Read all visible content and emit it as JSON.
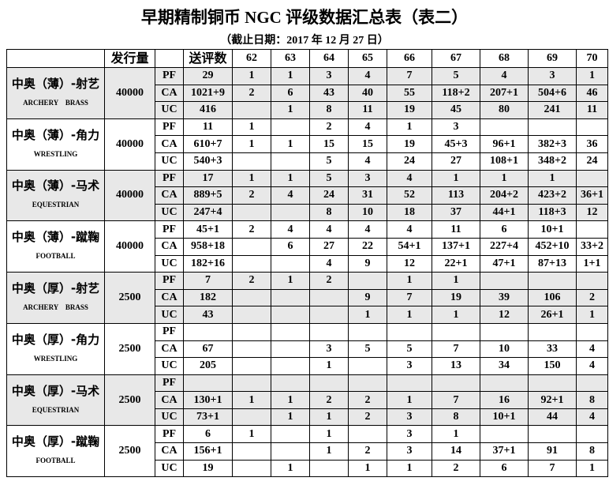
{
  "title": "早期精制铜币 NGC 评级数据汇总表（表二）",
  "subtitle": "（截止日期：2017 年 12 月 27 日）",
  "headers": {
    "name": "",
    "issue": "发行量",
    "grade": "",
    "total": "送评数",
    "grades": [
      "62",
      "63",
      "64",
      "65",
      "66",
      "67",
      "68",
      "69",
      "70"
    ]
  },
  "shade_color": "#e8e8e8",
  "groups": [
    {
      "cn": "中奥（薄）-射艺",
      "en": "ARCHERY　BRASS",
      "issue": "40000",
      "rows": [
        {
          "g": "PF",
          "total": "29",
          "v": [
            "1",
            "1",
            "3",
            "4",
            "7",
            "5",
            "4",
            "3",
            "1"
          ]
        },
        {
          "g": "CA",
          "total": "1021+9",
          "v": [
            "2",
            "6",
            "43",
            "40",
            "55",
            "118+2",
            "207+1",
            "504+6",
            "46"
          ]
        },
        {
          "g": "UC",
          "total": "416",
          "v": [
            "",
            "1",
            "8",
            "11",
            "19",
            "45",
            "80",
            "241",
            "11"
          ]
        }
      ]
    },
    {
      "cn": "中奥（薄）-角力",
      "en": "WRESTLING",
      "issue": "40000",
      "rows": [
        {
          "g": "PF",
          "total": "11",
          "v": [
            "1",
            "",
            "2",
            "4",
            "1",
            "3",
            "",
            "",
            ""
          ]
        },
        {
          "g": "CA",
          "total": "610+7",
          "v": [
            "1",
            "1",
            "15",
            "15",
            "19",
            "45+3",
            "96+1",
            "382+3",
            "36"
          ]
        },
        {
          "g": "UC",
          "total": "540+3",
          "v": [
            "",
            "",
            "5",
            "4",
            "24",
            "27",
            "108+1",
            "348+2",
            "24"
          ]
        }
      ]
    },
    {
      "cn": "中奥（薄）-马术",
      "en": "EQUESTRIAN",
      "issue": "40000",
      "rows": [
        {
          "g": "PF",
          "total": "17",
          "v": [
            "1",
            "1",
            "5",
            "3",
            "4",
            "1",
            "1",
            "1",
            ""
          ]
        },
        {
          "g": "CA",
          "total": "889+5",
          "v": [
            "2",
            "4",
            "24",
            "31",
            "52",
            "113",
            "204+2",
            "423+2",
            "36+1"
          ]
        },
        {
          "g": "UC",
          "total": "247+4",
          "v": [
            "",
            "",
            "8",
            "10",
            "18",
            "37",
            "44+1",
            "118+3",
            "12"
          ]
        }
      ]
    },
    {
      "cn": "中奥（薄）-蹴鞠",
      "en": "FOOTBALL",
      "issue": "40000",
      "rows": [
        {
          "g": "PF",
          "total": "45+1",
          "v": [
            "2",
            "4",
            "4",
            "4",
            "4",
            "11",
            "6",
            "10+1",
            ""
          ]
        },
        {
          "g": "CA",
          "total": "958+18",
          "v": [
            "",
            "6",
            "27",
            "22",
            "54+1",
            "137+1",
            "227+4",
            "452+10",
            "33+2"
          ]
        },
        {
          "g": "UC",
          "total": "182+16",
          "v": [
            "",
            "",
            "4",
            "9",
            "12",
            "22+1",
            "47+1",
            "87+13",
            "1+1"
          ]
        }
      ]
    },
    {
      "cn": "中奥（厚）-射艺",
      "en": "ARCHERY　BRASS",
      "issue": "2500",
      "rows": [
        {
          "g": "PF",
          "total": "7",
          "v": [
            "2",
            "1",
            "2",
            "",
            "1",
            "1",
            "",
            "",
            ""
          ]
        },
        {
          "g": "CA",
          "total": "182",
          "v": [
            "",
            "",
            "",
            "9",
            "7",
            "19",
            "39",
            "106",
            "2"
          ]
        },
        {
          "g": "UC",
          "total": "43",
          "v": [
            "",
            "",
            "",
            "1",
            "1",
            "1",
            "12",
            "26+1",
            "1"
          ]
        }
      ]
    },
    {
      "cn": "中奥（厚）-角力",
      "en": "WRESTLING",
      "issue": "2500",
      "rows": [
        {
          "g": "PF",
          "total": "",
          "v": [
            "",
            "",
            "",
            "",
            "",
            "",
            "",
            "",
            ""
          ]
        },
        {
          "g": "CA",
          "total": "67",
          "v": [
            "",
            "",
            "3",
            "5",
            "5",
            "7",
            "10",
            "33",
            "4"
          ]
        },
        {
          "g": "UC",
          "total": "205",
          "v": [
            "",
            "",
            "1",
            "",
            "3",
            "13",
            "34",
            "150",
            "4"
          ]
        }
      ]
    },
    {
      "cn": "中奥（厚）-马术",
      "en": "EQUESTRIAN",
      "issue": "2500",
      "rows": [
        {
          "g": "PF",
          "total": "",
          "v": [
            "",
            "",
            "",
            "",
            "",
            "",
            "",
            "",
            ""
          ]
        },
        {
          "g": "CA",
          "total": "130+1",
          "v": [
            "1",
            "1",
            "2",
            "2",
            "1",
            "7",
            "16",
            "92+1",
            "8"
          ]
        },
        {
          "g": "UC",
          "total": "73+1",
          "v": [
            "",
            "1",
            "1",
            "2",
            "3",
            "8",
            "10+1",
            "44",
            "4"
          ]
        }
      ]
    },
    {
      "cn": "中奥（厚）-蹴鞠",
      "en": "FOOTBALL",
      "issue": "2500",
      "rows": [
        {
          "g": "PF",
          "total": "6",
          "v": [
            "1",
            "",
            "1",
            "",
            "3",
            "1",
            "",
            "",
            ""
          ]
        },
        {
          "g": "CA",
          "total": "156+1",
          "v": [
            "",
            "",
            "1",
            "2",
            "3",
            "14",
            "37+1",
            "91",
            "8"
          ]
        },
        {
          "g": "UC",
          "total": "19",
          "v": [
            "",
            "1",
            "",
            "1",
            "1",
            "2",
            "6",
            "7",
            "1"
          ]
        }
      ]
    }
  ]
}
